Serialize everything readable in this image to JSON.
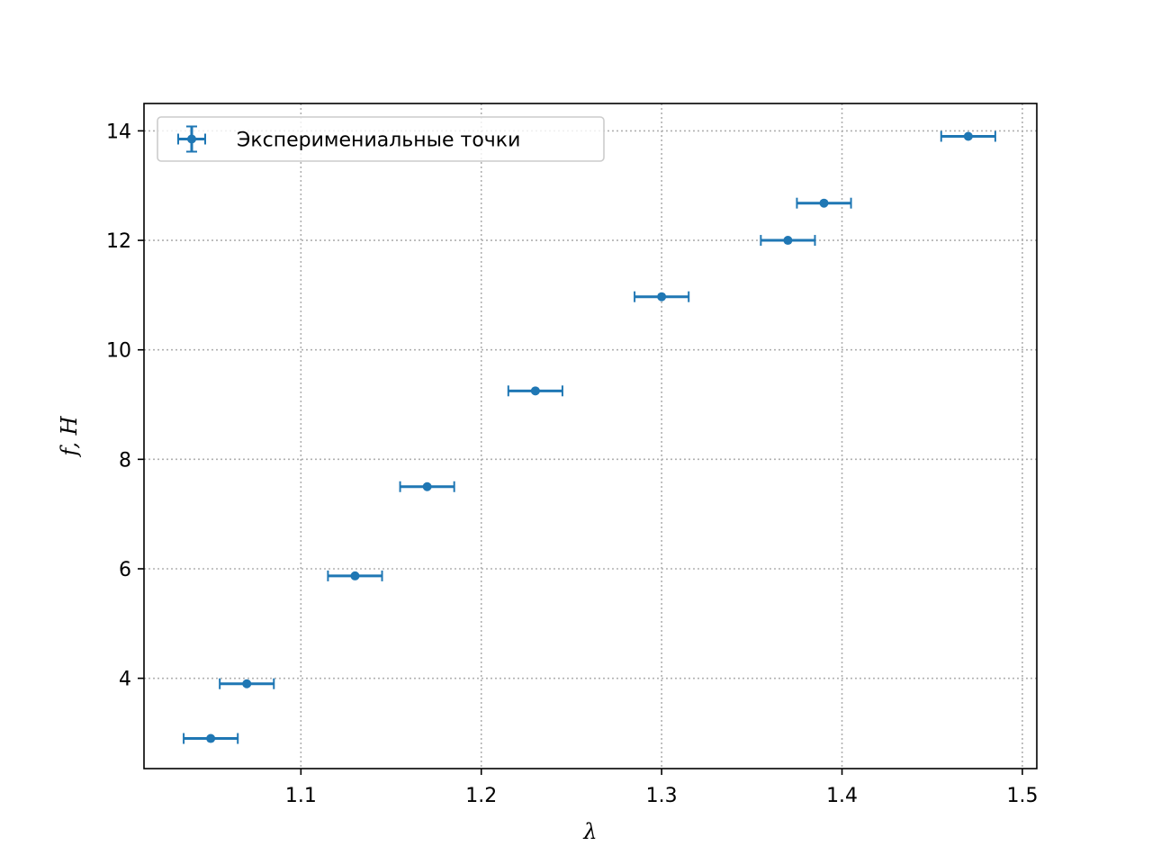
{
  "chart_data": {
    "type": "scatter",
    "title": "",
    "xlabel": "λ",
    "ylabel": "f, H",
    "xlim": [
      1.013,
      1.508
    ],
    "ylim": [
      2.35,
      14.5
    ],
    "xticks": [
      1.1,
      1.2,
      1.3,
      1.4,
      1.5
    ],
    "yticks": [
      4,
      6,
      8,
      10,
      12,
      14
    ],
    "grid": true,
    "grid_style": "dotted",
    "legend_position": "top-left",
    "series": [
      {
        "name": "Эксперимениальные точки",
        "color": "#1f77b4",
        "x": [
          1.05,
          1.07,
          1.13,
          1.17,
          1.23,
          1.3,
          1.37,
          1.39,
          1.47
        ],
        "y": [
          2.9,
          3.9,
          5.87,
          7.5,
          9.25,
          10.97,
          12.0,
          12.68,
          13.9
        ],
        "x_error": 0.015
      }
    ]
  }
}
